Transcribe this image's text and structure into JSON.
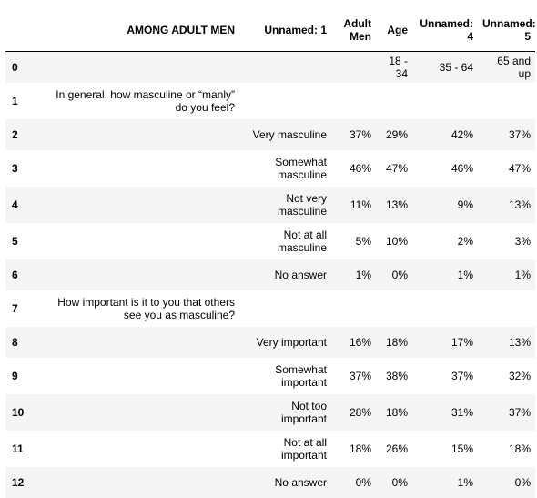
{
  "table": {
    "columns": [
      "",
      "AMONG ADULT MEN",
      "Unnamed: 1",
      "Adult Men",
      "Age",
      "Unnamed: 4",
      "Unnamed: 5"
    ],
    "rows": [
      {
        "index": "0",
        "c1": "",
        "c2": "",
        "c3": "",
        "c4": "18 - 34",
        "c5": "35 - 64",
        "c6": "65 and up"
      },
      {
        "index": "1",
        "c1": "In general, how masculine or “manly” do you feel?",
        "c2": "",
        "c3": "",
        "c4": "",
        "c5": "",
        "c6": ""
      },
      {
        "index": "2",
        "c1": "",
        "c2": "Very masculine",
        "c3": "37%",
        "c4": "29%",
        "c5": "42%",
        "c6": "37%"
      },
      {
        "index": "3",
        "c1": "",
        "c2": "Somewhat masculine",
        "c3": "46%",
        "c4": "47%",
        "c5": "46%",
        "c6": "47%"
      },
      {
        "index": "4",
        "c1": "",
        "c2": "Not very masculine",
        "c3": "11%",
        "c4": "13%",
        "c5": "9%",
        "c6": "13%"
      },
      {
        "index": "5",
        "c1": "",
        "c2": "Not at all masculine",
        "c3": "5%",
        "c4": "10%",
        "c5": "2%",
        "c6": "3%"
      },
      {
        "index": "6",
        "c1": "",
        "c2": "No answer",
        "c3": "1%",
        "c4": "0%",
        "c5": "1%",
        "c6": "1%"
      },
      {
        "index": "7",
        "c1": "How important is it to you that others see you as masculine?",
        "c2": "",
        "c3": "",
        "c4": "",
        "c5": "",
        "c6": ""
      },
      {
        "index": "8",
        "c1": "",
        "c2": "Very important",
        "c3": "16%",
        "c4": "18%",
        "c5": "17%",
        "c6": "13%"
      },
      {
        "index": "9",
        "c1": "",
        "c2": "Somewhat important",
        "c3": "37%",
        "c4": "38%",
        "c5": "37%",
        "c6": "32%"
      },
      {
        "index": "10",
        "c1": "",
        "c2": "Not too important",
        "c3": "28%",
        "c4": "18%",
        "c5": "31%",
        "c6": "37%"
      },
      {
        "index": "11",
        "c1": "",
        "c2": "Not at all important",
        "c3": "18%",
        "c4": "26%",
        "c5": "15%",
        "c6": "18%"
      },
      {
        "index": "12",
        "c1": "",
        "c2": "No answer",
        "c3": "0%",
        "c4": "0%",
        "c5": "1%",
        "c6": "0%"
      }
    ]
  }
}
